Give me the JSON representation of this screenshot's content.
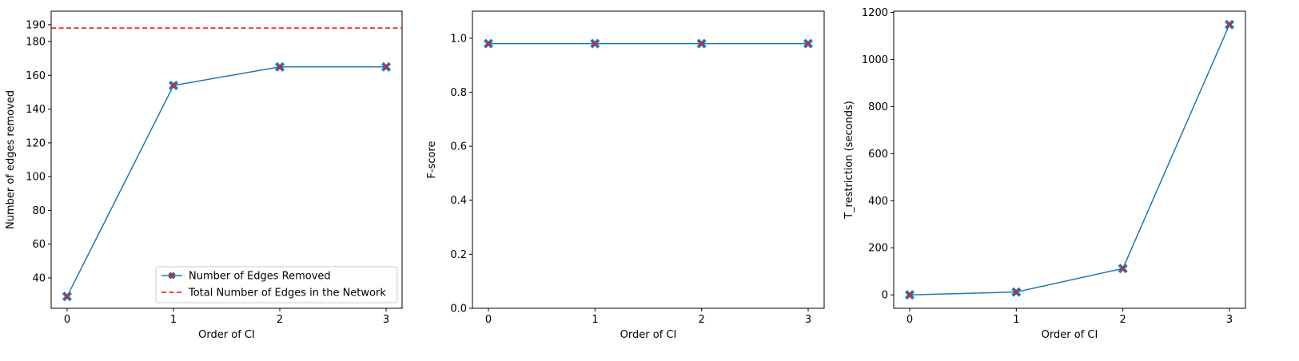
{
  "figure": {
    "line_color": "#1f77b4",
    "marker_color": "#d62728",
    "reference_color": "#ff0000"
  },
  "chart_data": [
    {
      "type": "line",
      "x": [
        0,
        1,
        2,
        3
      ],
      "xticks": [
        "0",
        "1",
        "2",
        "3"
      ],
      "xlim": [
        -0.15,
        3.15
      ],
      "xlabel": "Order of CI",
      "ylabel": "Number of edges removed",
      "ylim": [
        22,
        198
      ],
      "yticks": [
        "40",
        "60",
        "80",
        "100",
        "120",
        "140",
        "160",
        "180",
        "190"
      ],
      "series": [
        {
          "name": "Number of Edges Removed",
          "values": [
            29,
            154,
            165,
            165
          ],
          "marker": "X"
        }
      ],
      "reference_lines": [
        {
          "name": "Total Number of Edges in the Network",
          "y": 188,
          "style": "dashed"
        }
      ],
      "grid": false,
      "legend": "lower-right"
    },
    {
      "type": "line",
      "x": [
        0,
        1,
        2,
        3
      ],
      "xticks": [
        "0",
        "1",
        "2",
        "3"
      ],
      "xlim": [
        -0.15,
        3.15
      ],
      "xlabel": "Order of CI",
      "ylabel": "F-score",
      "ylim": [
        0.0,
        1.1
      ],
      "yticks": [
        "0.0",
        "0.2",
        "0.4",
        "0.6",
        "0.8",
        "1.0"
      ],
      "series": [
        {
          "values": [
            0.98,
            0.98,
            0.98,
            0.98
          ],
          "marker": "X"
        }
      ],
      "grid": false
    },
    {
      "type": "line",
      "x": [
        0,
        1,
        2,
        3
      ],
      "xticks": [
        "0",
        "1",
        "2",
        "3"
      ],
      "xlim": [
        -0.15,
        3.15
      ],
      "xlabel": "Order of CI",
      "ylabel": "T_restriction (seconds)",
      "ylim": [
        -57,
        1205
      ],
      "yticks": [
        "0",
        "200",
        "400",
        "600",
        "800",
        "1000",
        "1200"
      ],
      "series": [
        {
          "values": [
            0,
            12,
            112,
            1148
          ],
          "marker": "X"
        }
      ],
      "grid": false
    }
  ]
}
